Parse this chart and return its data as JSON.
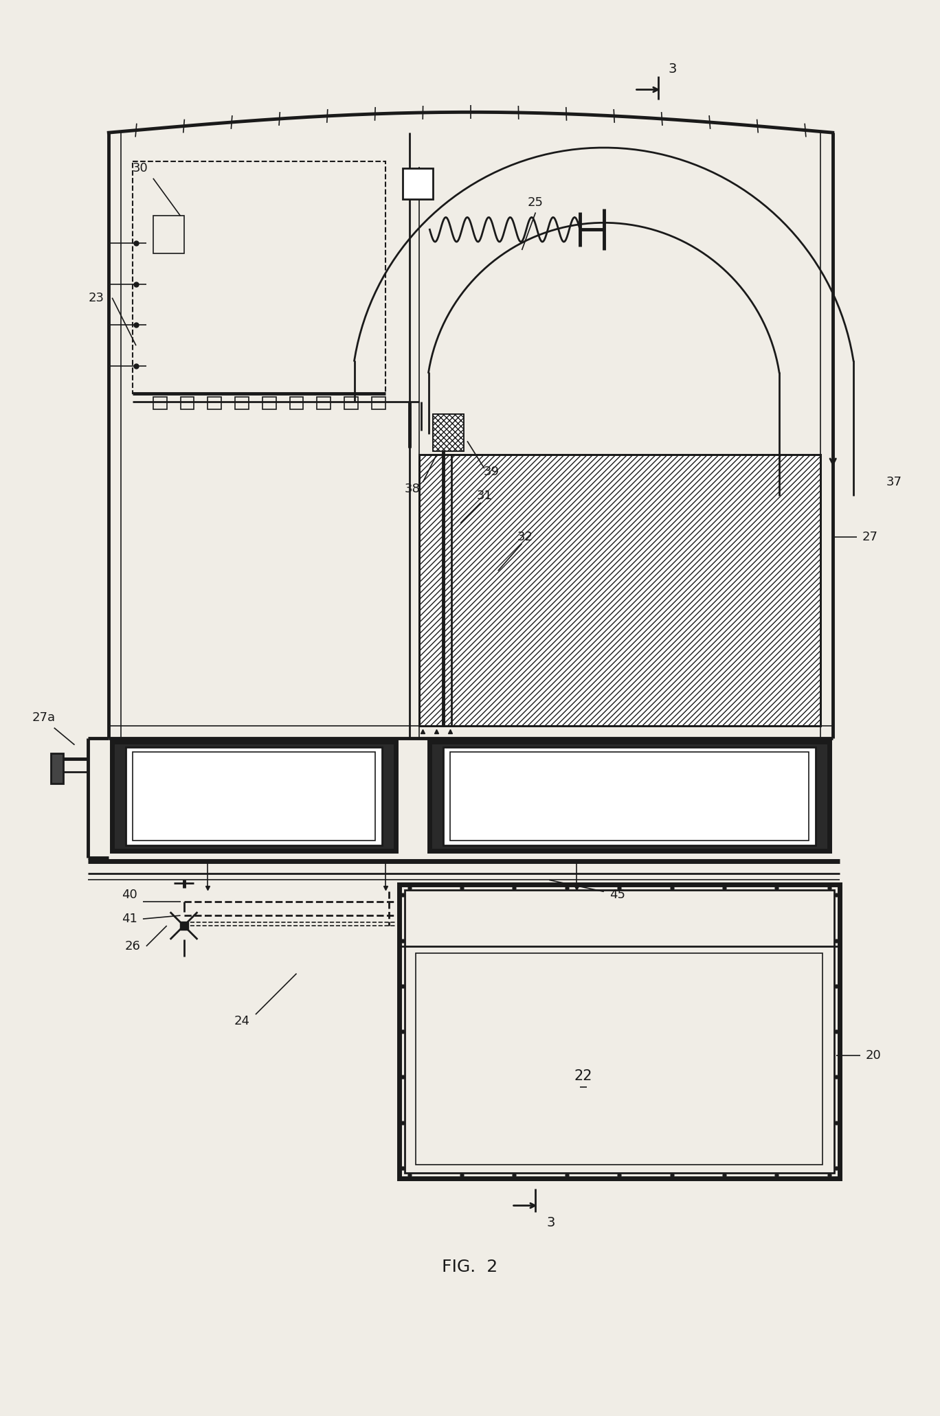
{
  "bg_color": "#f0ede6",
  "line_color": "#1a1a1a",
  "fig_label": "FIG.  2",
  "fig_width": 13.68,
  "fig_height": 20.62,
  "dpi": 100
}
